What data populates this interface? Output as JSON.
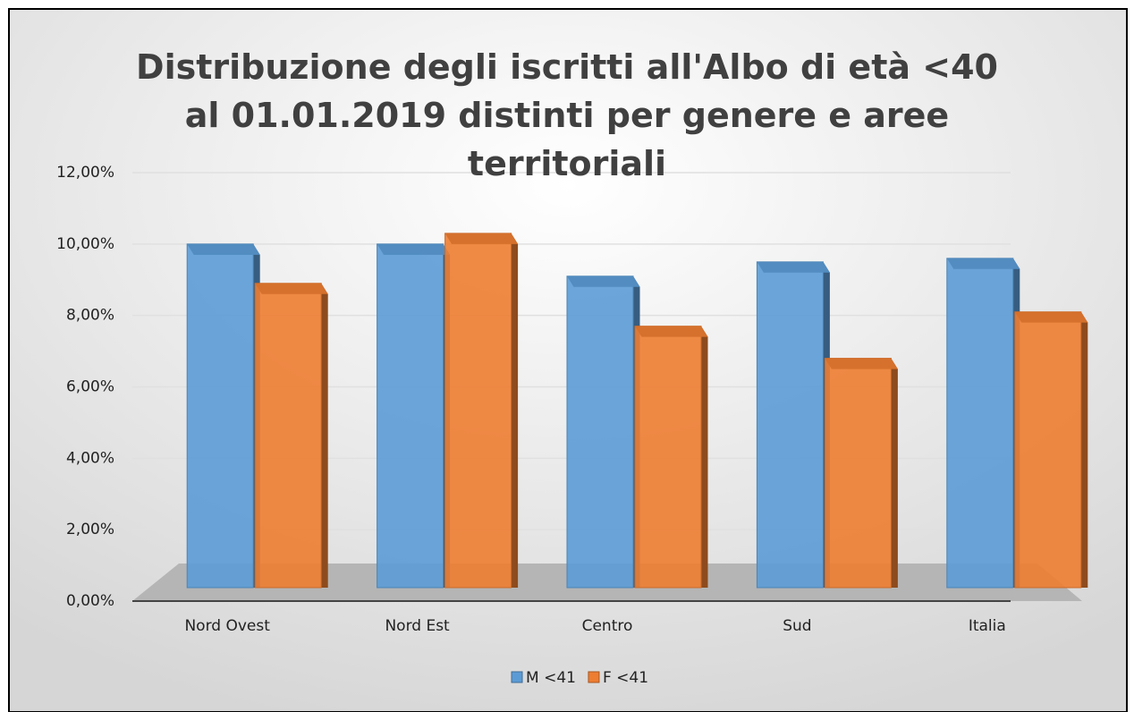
{
  "chart_data": {
    "type": "bar",
    "title": "Distribuzione degli iscritti all'Albo di età <40 al 01.01.2019 distinti per genere e aree territoriali",
    "categories": [
      "Nord Ovest",
      "Nord Est",
      "Centro",
      "Sud",
      "Italia"
    ],
    "series": [
      {
        "name": "M <41",
        "color": "#5b9bd5",
        "values": [
          10.0,
          10.0,
          9.1,
          9.5,
          9.6
        ]
      },
      {
        "name": "F <41",
        "color": "#ed7d31",
        "values": [
          8.9,
          10.3,
          7.7,
          6.8,
          8.1
        ]
      }
    ],
    "ylim": [
      0,
      12
    ],
    "yticks": [
      {
        "value": 0,
        "label": "0,00%"
      },
      {
        "value": 2,
        "label": "2,00%"
      },
      {
        "value": 4,
        "label": "4,00%"
      },
      {
        "value": 6,
        "label": "6,00%"
      },
      {
        "value": 8,
        "label": "8,00%"
      },
      {
        "value": 10,
        "label": "10,00%"
      },
      {
        "value": 12,
        "label": "12,00%"
      }
    ],
    "grid": true,
    "legend": "bottom"
  }
}
